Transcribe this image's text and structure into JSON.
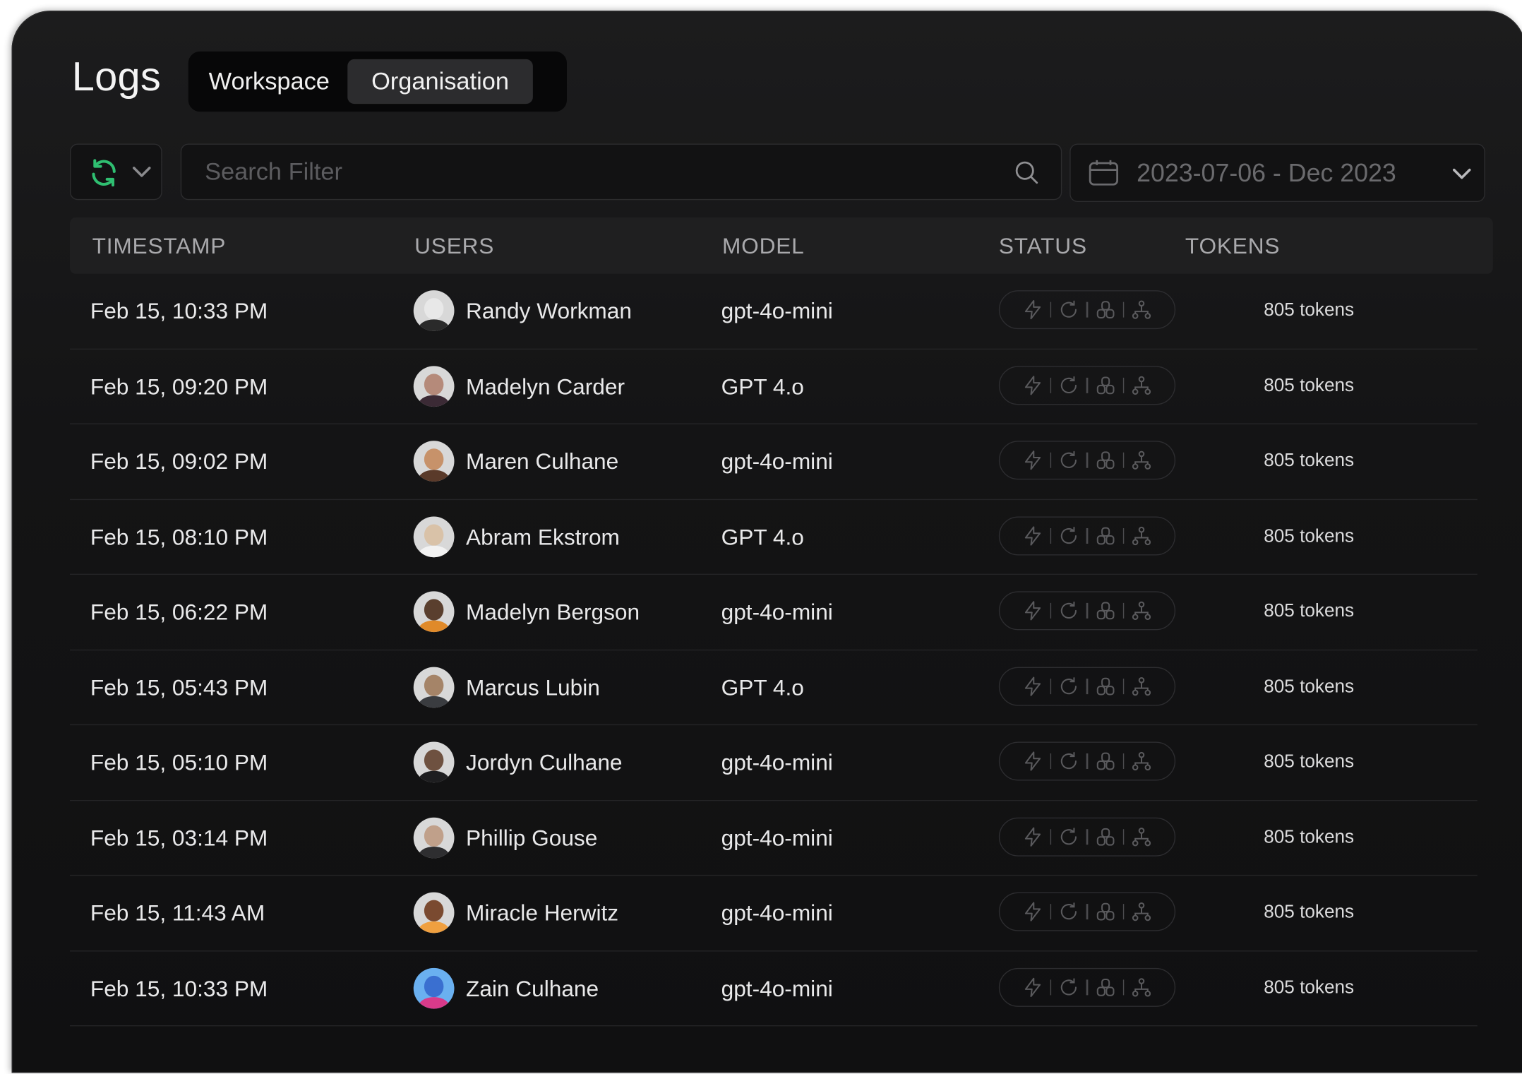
{
  "page": {
    "title": "Logs",
    "tabs": [
      {
        "label": "Workspace",
        "active": false
      },
      {
        "label": "Organisation",
        "active": true
      }
    ]
  },
  "toolbar": {
    "refresh_icon": "refresh-icon",
    "search_placeholder": "Search Filter",
    "search_icon": "search-icon",
    "date_range": "2023-07-06 - Dec 2023",
    "calendar_icon": "calendar-icon"
  },
  "table": {
    "columns": [
      "TIMESTAMP",
      "USERS",
      "MODEL",
      "STATUS",
      "TOKENS"
    ],
    "status_icons": [
      "bolt-icon",
      "retry-icon",
      "cache-icon",
      "hierarchy-icon"
    ],
    "rows": [
      {
        "timestamp": "Feb 15, 10:33 PM",
        "user": "Randy Workman",
        "model": "gpt-4o-mini",
        "tokens": "805 tokens"
      },
      {
        "timestamp": "Feb 15, 09:20 PM",
        "user": "Madelyn Carder",
        "model": "GPT 4.o",
        "tokens": "805 tokens"
      },
      {
        "timestamp": "Feb 15, 09:02 PM",
        "user": "Maren Culhane",
        "model": "gpt-4o-mini",
        "tokens": "805 tokens"
      },
      {
        "timestamp": "Feb 15, 08:10 PM",
        "user": "Abram Ekstrom",
        "model": "GPT 4.o",
        "tokens": "805 tokens"
      },
      {
        "timestamp": "Feb 15, 06:22 PM",
        "user": "Madelyn Bergson",
        "model": "gpt-4o-mini",
        "tokens": "805 tokens"
      },
      {
        "timestamp": "Feb 15, 05:43 PM",
        "user": "Marcus Lubin",
        "model": "GPT 4.o",
        "tokens": "805 tokens"
      },
      {
        "timestamp": "Feb 15, 05:10 PM",
        "user": "Jordyn Culhane",
        "model": "gpt-4o-mini",
        "tokens": "805 tokens"
      },
      {
        "timestamp": "Feb 15, 03:14 PM",
        "user": "Phillip Gouse",
        "model": "gpt-4o-mini",
        "tokens": "805 tokens"
      },
      {
        "timestamp": "Feb 15, 11:43 AM",
        "user": "Miracle Herwitz",
        "model": "gpt-4o-mini",
        "tokens": "805 tokens"
      },
      {
        "timestamp": "Feb 15, 10:33 PM",
        "user": "Zain Culhane",
        "model": "gpt-4o-mini",
        "tokens": "805 tokens"
      }
    ]
  },
  "colors": {
    "background": "#141415",
    "accent_refresh": "#2fbf71",
    "text": "#e9e9ea",
    "muted": "#6a6a6d"
  }
}
